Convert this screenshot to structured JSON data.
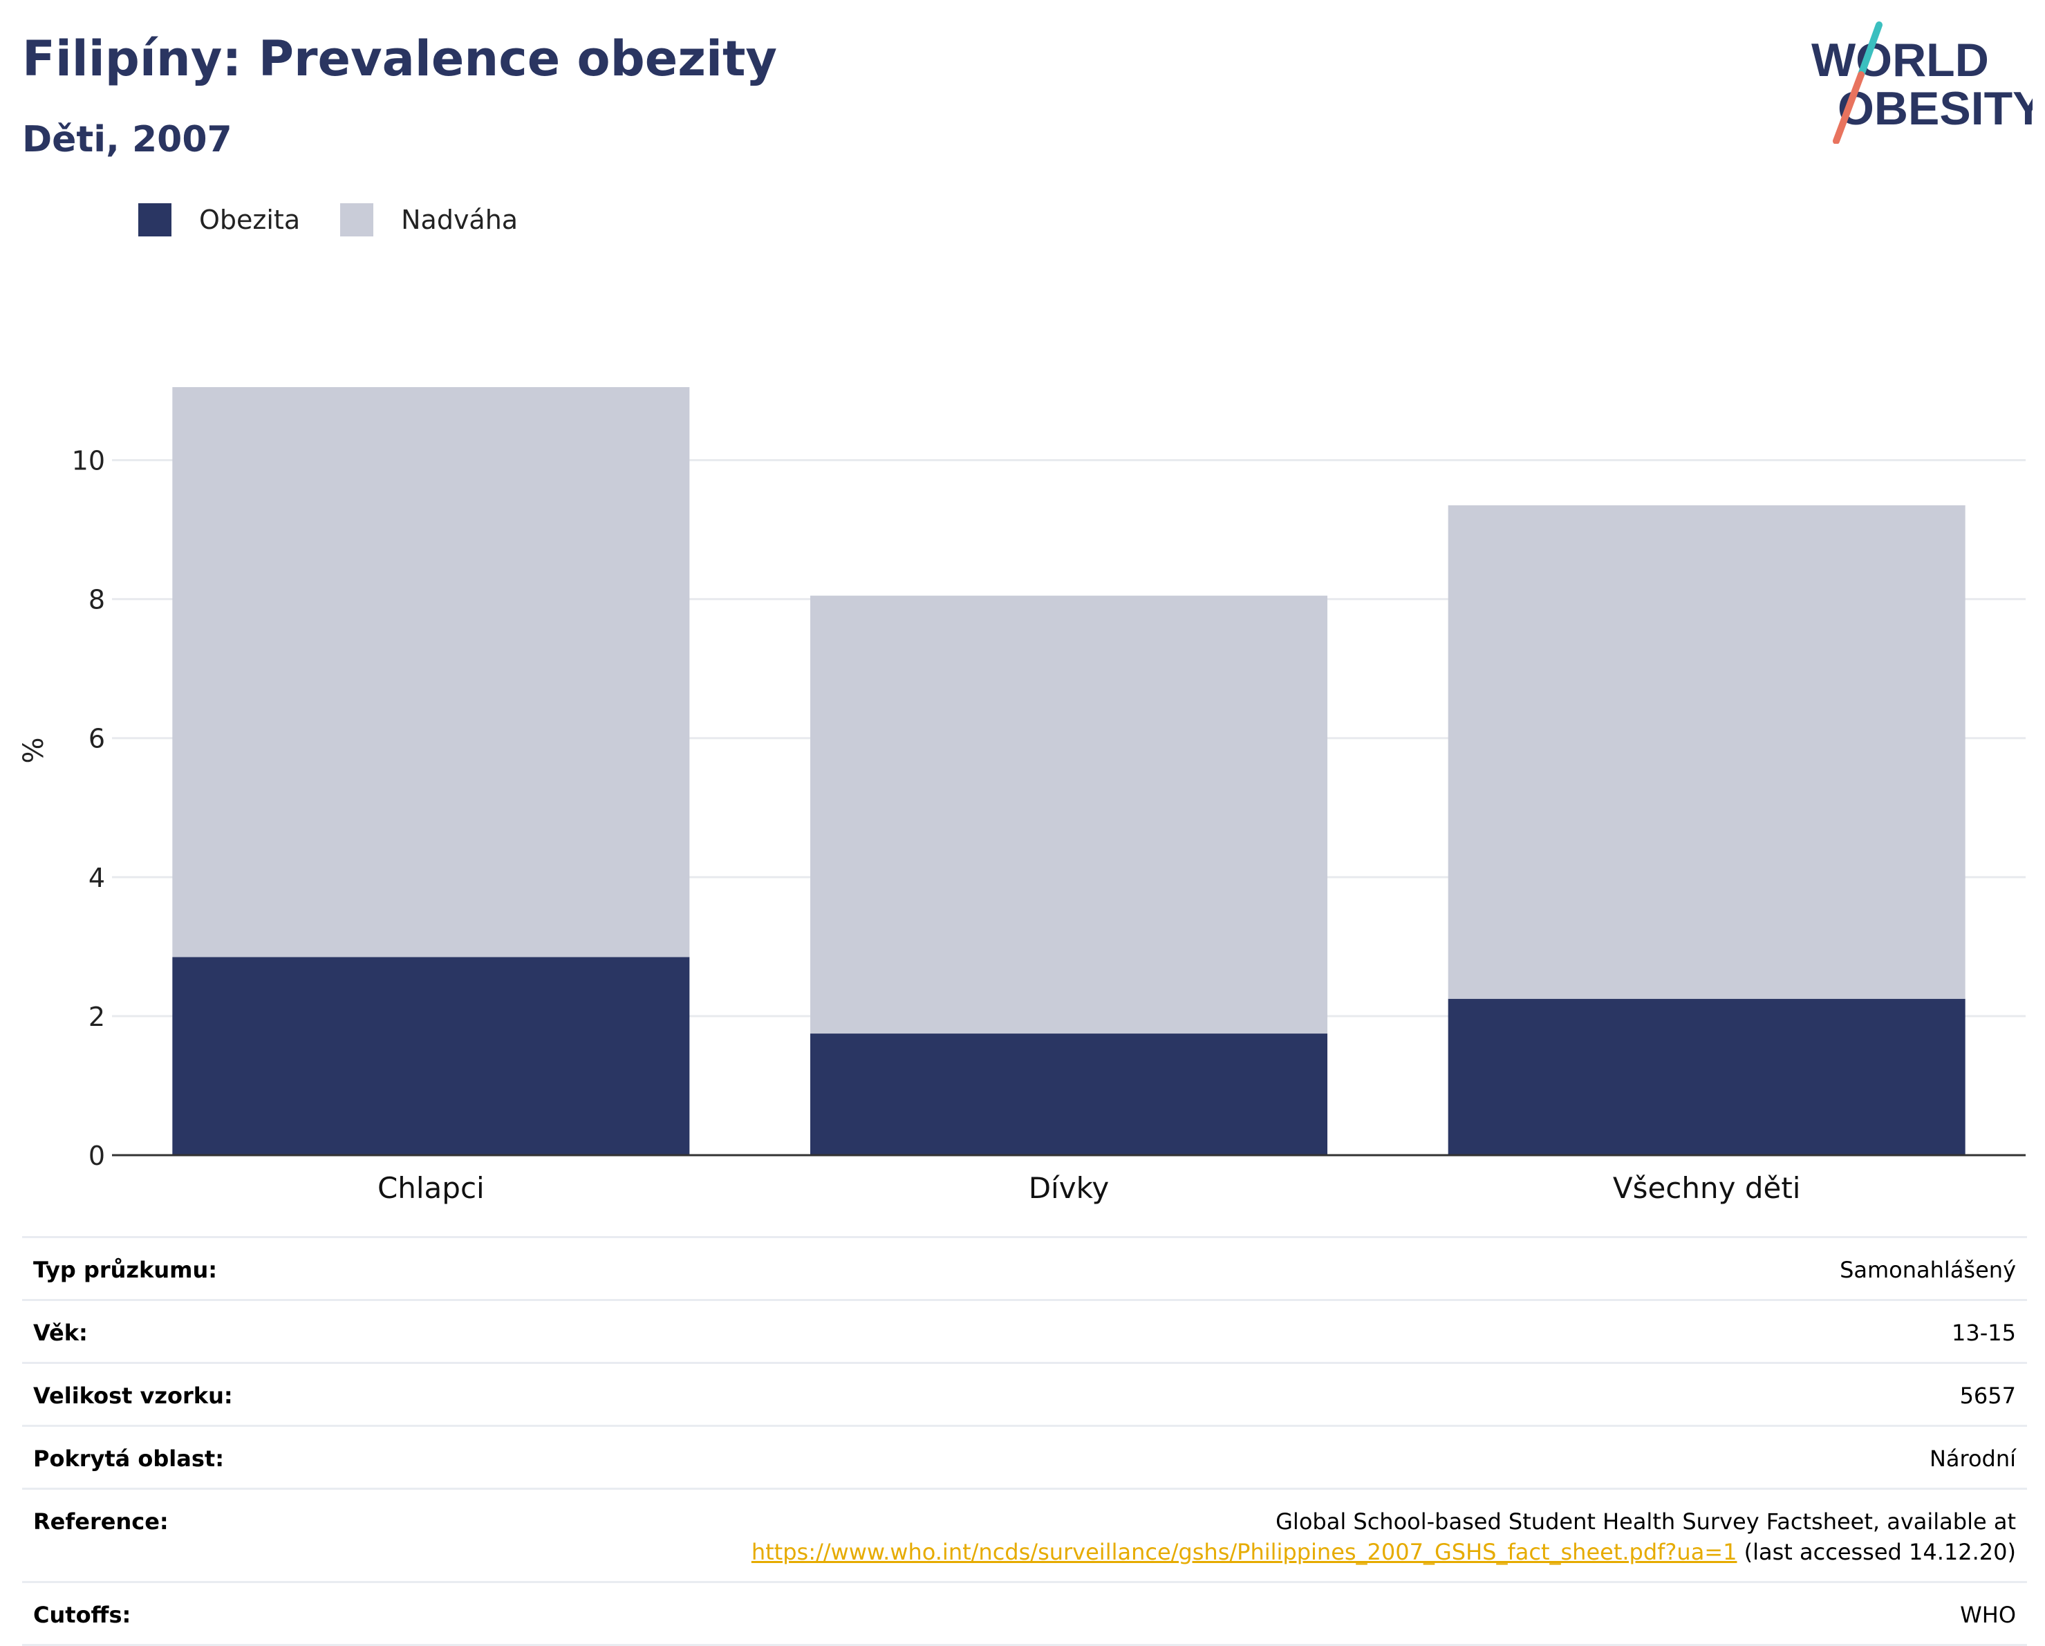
{
  "header": {
    "title": "Filipíny: Prevalence obezity",
    "subtitle": "Děti, 2007"
  },
  "logo": {
    "line1": "WORLD",
    "line2": "OBESITY"
  },
  "colors": {
    "obesity": "#2a3663",
    "overweight": "#c9ccd8",
    "title": "#2a3561",
    "grid": "#e8eaee",
    "link": "#e6ab00"
  },
  "legend": [
    {
      "label": "Obezita",
      "color": "#2a3663"
    },
    {
      "label": "Nadváha",
      "color": "#c9ccd8"
    }
  ],
  "chart_data": {
    "type": "bar",
    "stacked": true,
    "categories": [
      "Chlapci",
      "Dívky",
      "Všechny děti"
    ],
    "series": [
      {
        "name": "Obezita",
        "values": [
          2.85,
          1.75,
          2.25
        ]
      },
      {
        "name": "Nadváha",
        "values": [
          8.2,
          6.3,
          7.1
        ]
      }
    ],
    "totals": [
      11.05,
      8.05,
      9.35
    ],
    "ylabel": "%",
    "ylim": [
      0,
      11.05
    ],
    "yticks": [
      0,
      2,
      4,
      6,
      8,
      10
    ],
    "grid": true,
    "legend_position": "top-left"
  },
  "info": [
    {
      "label": "Typ průzkumu:",
      "value": "Samonahlášený"
    },
    {
      "label": "Věk:",
      "value": "13-15"
    },
    {
      "label": "Velikost vzorku:",
      "value": "5657"
    },
    {
      "label": "Pokrytá oblast:",
      "value": "Národní"
    },
    {
      "label": "Reference:",
      "value_line1": "Global School-based Student Health Survey Factsheet, available at",
      "link": "https://www.who.int/ncds/surveillance/gshs/Philippines_2007_GSHS_fact_sheet.pdf?ua=1",
      "value_suffix": " (last accessed 14.12.20)"
    },
    {
      "label": "Cutoffs:",
      "value": "WHO"
    }
  ]
}
